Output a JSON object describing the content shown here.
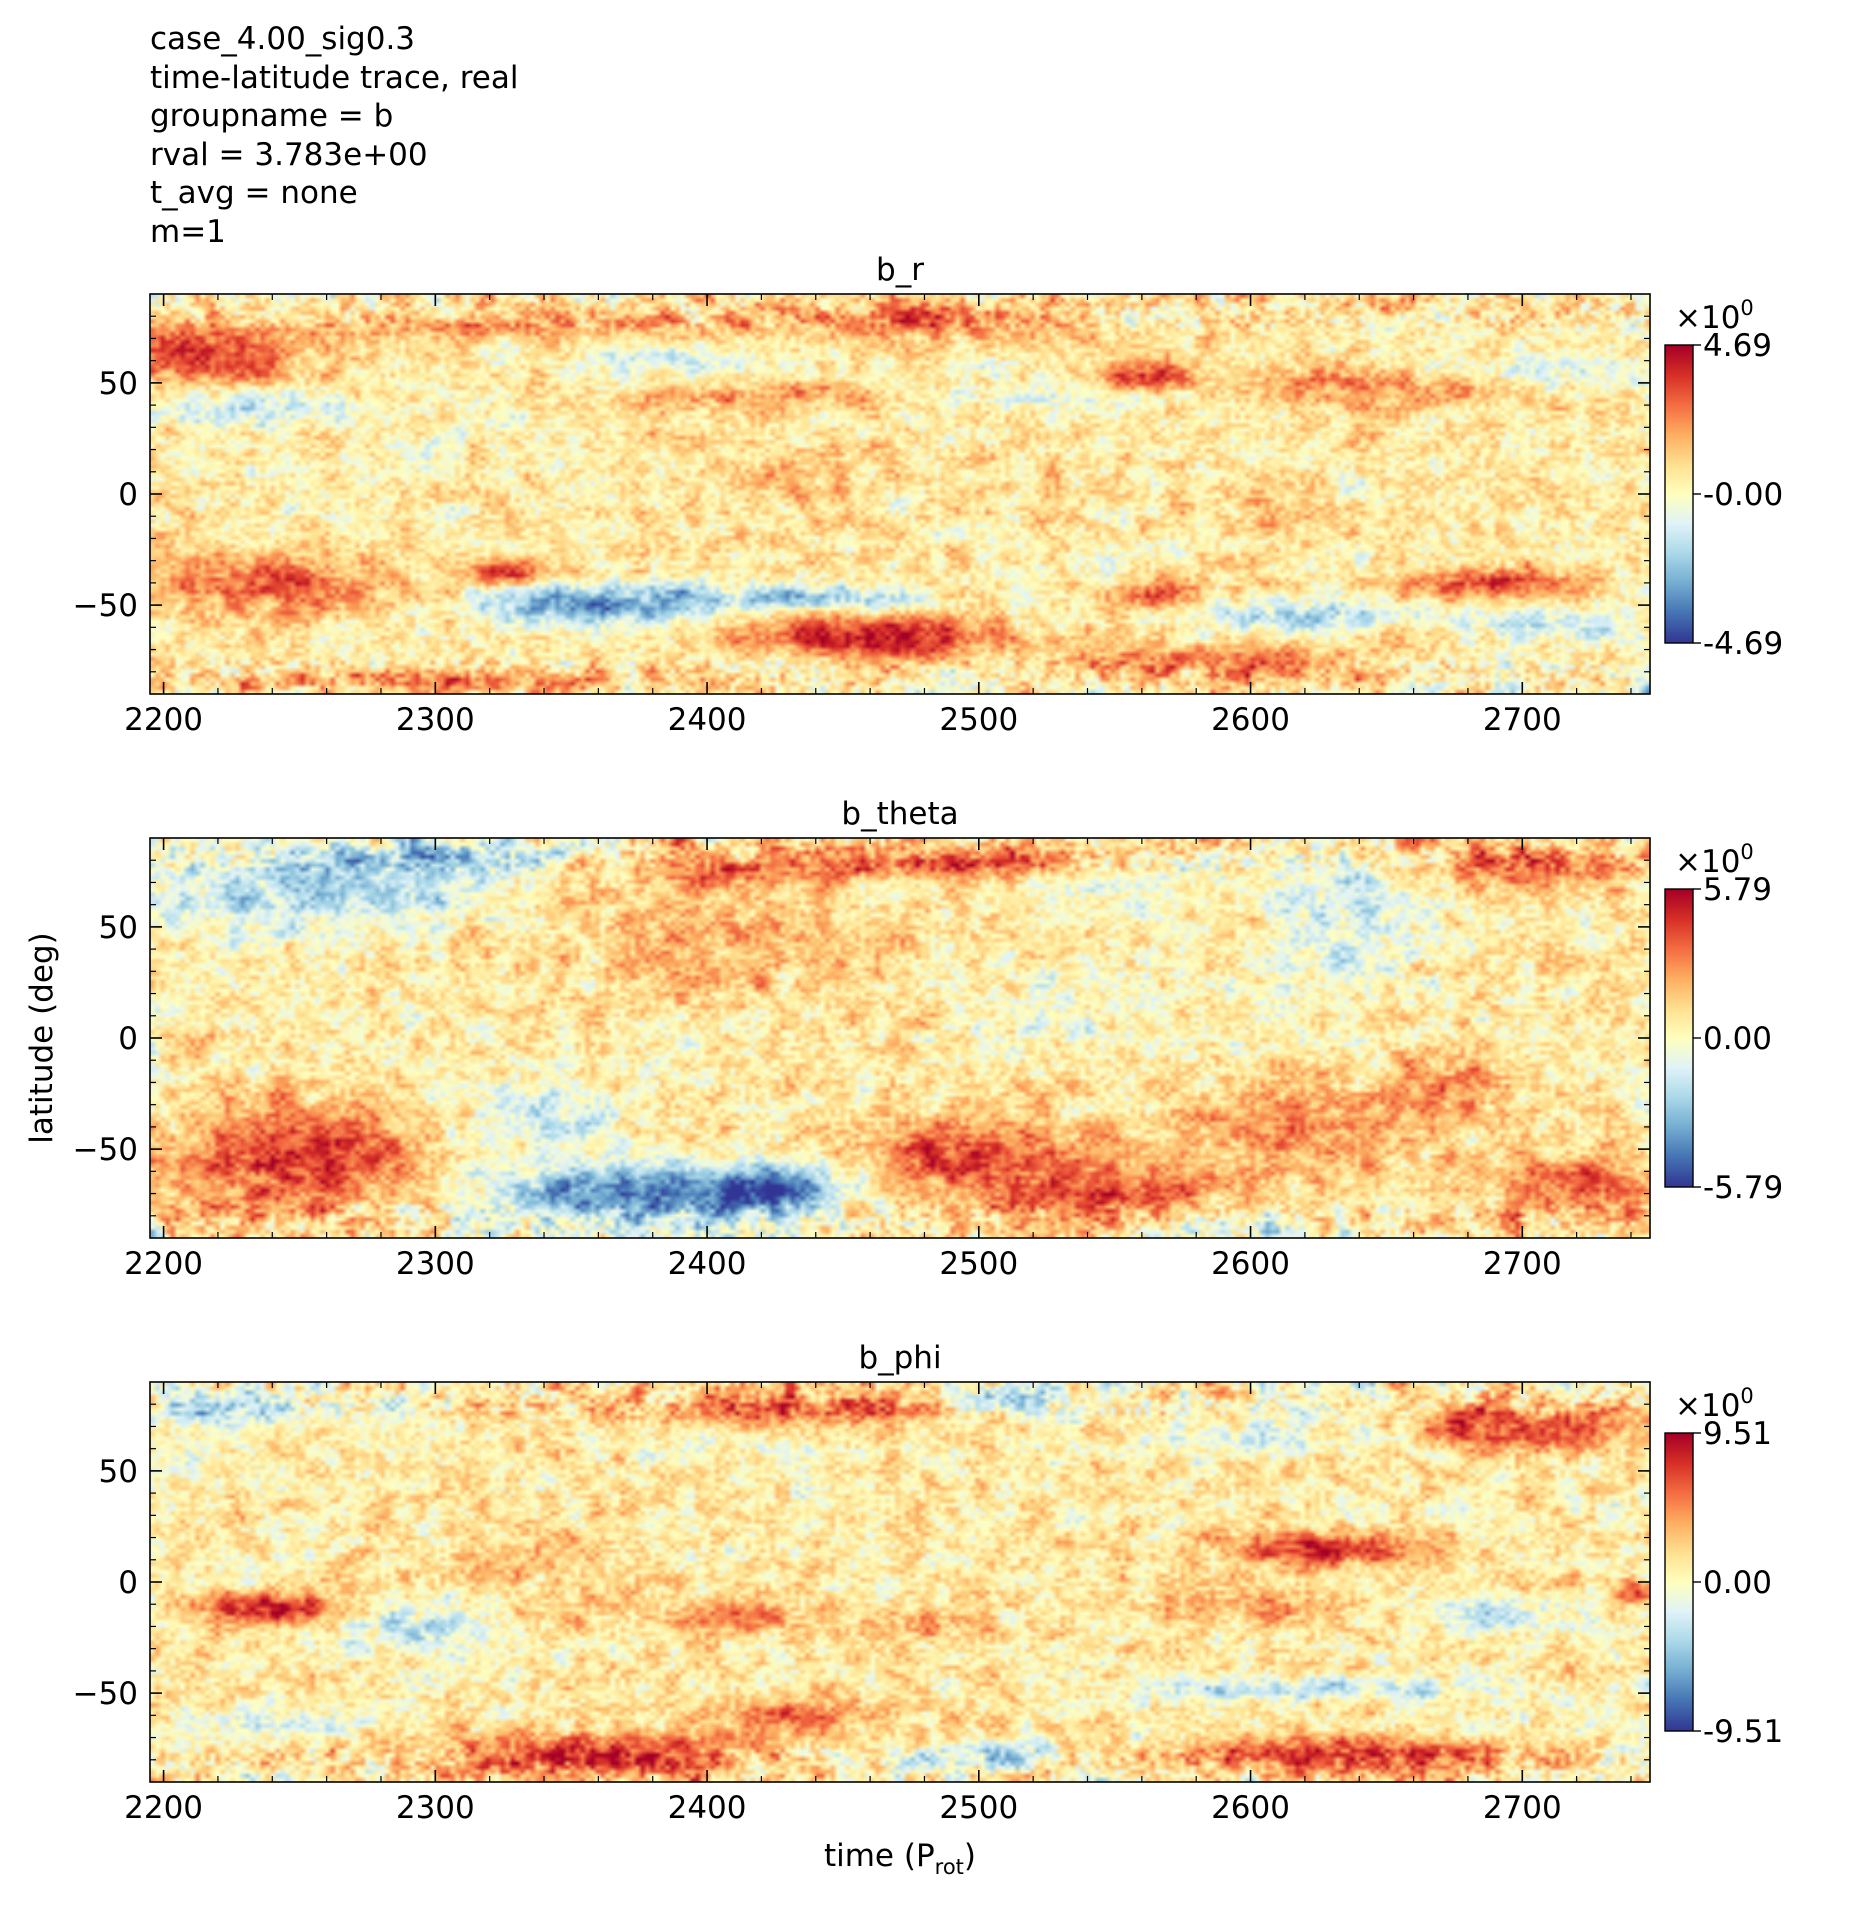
{
  "header_lines": [
    "case_4.00_sig0.3",
    "time-latitude trace, real",
    "groupname = b",
    "rval = 3.783e+00",
    "t_avg = none",
    "m=1"
  ],
  "colorbar_multiplier": {
    "base": "×10",
    "exponent": "0"
  },
  "chart_data": [
    {
      "type": "heatmap",
      "title": "b_r",
      "xlabel": "",
      "ylabel": "",
      "xlim": [
        2195,
        2747
      ],
      "ylim": [
        -90,
        90
      ],
      "xticks": [
        "2200",
        "2300",
        "2400",
        "2500",
        "2600",
        "2700"
      ],
      "yticks": [
        "50",
        "0",
        "−50"
      ],
      "ytick_values": [
        50,
        0,
        -50
      ],
      "colorbar": {
        "min": -4.69,
        "max": 4.69,
        "ticks": [
          "4.69",
          "-0.00",
          "-4.69"
        ]
      },
      "features": [
        {
          "t": 2215,
          "lat": 62,
          "wt": 35,
          "wl": 14,
          "amp": 0.85
        },
        {
          "t": 2330,
          "lat": 72,
          "wt": 60,
          "wl": 10,
          "amp": 0.55
        },
        {
          "t": 2470,
          "lat": 78,
          "wt": 60,
          "wl": 10,
          "amp": 0.55
        },
        {
          "t": 2560,
          "lat": 52,
          "wt": 20,
          "wl": 8,
          "amp": 0.75
        },
        {
          "t": 2650,
          "lat": 48,
          "wt": 50,
          "wl": 10,
          "amp": 0.5
        },
        {
          "t": 2420,
          "lat": 44,
          "wt": 40,
          "wl": 7,
          "amp": 0.45
        },
        {
          "t": 2230,
          "lat": 40,
          "wt": 35,
          "wl": 8,
          "amp": -0.55
        },
        {
          "t": 2390,
          "lat": 62,
          "wt": 30,
          "wl": 8,
          "amp": -0.45
        },
        {
          "t": 2530,
          "lat": 44,
          "wt": 45,
          "wl": 6,
          "amp": -0.35
        },
        {
          "t": 2700,
          "lat": 55,
          "wt": 40,
          "wl": 8,
          "amp": -0.4
        },
        {
          "t": 2330,
          "lat": 66,
          "wt": 40,
          "wl": 6,
          "amp": -0.4
        },
        {
          "t": 2240,
          "lat": -40,
          "wt": 45,
          "wl": 14,
          "amp": 0.65
        },
        {
          "t": 2325,
          "lat": -35,
          "wt": 15,
          "wl": 6,
          "amp": 0.9
        },
        {
          "t": 2360,
          "lat": -50,
          "wt": 45,
          "wl": 9,
          "amp": -0.95
        },
        {
          "t": 2435,
          "lat": -47,
          "wt": 40,
          "wl": 6,
          "amp": -0.75
        },
        {
          "t": 2460,
          "lat": -64,
          "wt": 45,
          "wl": 10,
          "amp": 1.0
        },
        {
          "t": 2560,
          "lat": -45,
          "wt": 20,
          "wl": 9,
          "amp": 0.55
        },
        {
          "t": 2548,
          "lat": -37,
          "wt": 12,
          "wl": 7,
          "amp": -0.45
        },
        {
          "t": 2620,
          "lat": -55,
          "wt": 45,
          "wl": 6,
          "amp": -0.6
        },
        {
          "t": 2690,
          "lat": -40,
          "wt": 35,
          "wl": 6,
          "amp": 0.75
        },
        {
          "t": 2590,
          "lat": -76,
          "wt": 50,
          "wl": 8,
          "amp": 0.65
        },
        {
          "t": 2720,
          "lat": -60,
          "wt": 30,
          "wl": 8,
          "amp": -0.5
        },
        {
          "t": 2300,
          "lat": -84,
          "wt": 90,
          "wl": 5,
          "amp": 0.55
        },
        {
          "t": 2430,
          "lat": 10,
          "wt": 40,
          "wl": 15,
          "amp": 0.2
        },
        {
          "t": 2600,
          "lat": -10,
          "wt": 40,
          "wl": 15,
          "amp": 0.2
        }
      ]
    },
    {
      "type": "heatmap",
      "title": "b_theta",
      "xlabel": "",
      "ylabel": "latitude (deg)",
      "xlim": [
        2195,
        2747
      ],
      "ylim": [
        -90,
        90
      ],
      "xticks": [
        "2200",
        "2300",
        "2400",
        "2500",
        "2600",
        "2700"
      ],
      "yticks": [
        "50",
        "0",
        "−50"
      ],
      "ytick_values": [
        50,
        0,
        -50
      ],
      "colorbar": {
        "min": -5.79,
        "max": 5.79,
        "ticks": [
          "5.79",
          "0.00",
          "-5.79"
        ]
      },
      "features": [
        {
          "t": 2260,
          "lat": 68,
          "wt": 60,
          "wl": 18,
          "amp": -0.65
        },
        {
          "t": 2300,
          "lat": 82,
          "wt": 50,
          "wl": 8,
          "amp": -0.5
        },
        {
          "t": 2420,
          "lat": 78,
          "wt": 50,
          "wl": 10,
          "amp": 0.6
        },
        {
          "t": 2510,
          "lat": 80,
          "wt": 50,
          "wl": 8,
          "amp": 0.6
        },
        {
          "t": 2700,
          "lat": 78,
          "wt": 40,
          "wl": 10,
          "amp": 0.7
        },
        {
          "t": 2635,
          "lat": 65,
          "wt": 30,
          "wl": 18,
          "amp": -0.45
        },
        {
          "t": 2545,
          "lat": 72,
          "wt": 25,
          "wl": 10,
          "amp": -0.35
        },
        {
          "t": 2400,
          "lat": 40,
          "wt": 60,
          "wl": 25,
          "amp": 0.3
        },
        {
          "t": 2250,
          "lat": -55,
          "wt": 45,
          "wl": 25,
          "amp": 0.85
        },
        {
          "t": 2340,
          "lat": -35,
          "wt": 30,
          "wl": 15,
          "amp": -0.45
        },
        {
          "t": 2375,
          "lat": -70,
          "wt": 60,
          "wl": 14,
          "amp": -1.0
        },
        {
          "t": 2425,
          "lat": -68,
          "wt": 25,
          "wl": 12,
          "amp": -0.8
        },
        {
          "t": 2500,
          "lat": -55,
          "wt": 50,
          "wl": 20,
          "amp": 0.7
        },
        {
          "t": 2560,
          "lat": -70,
          "wt": 40,
          "wl": 12,
          "amp": 0.6
        },
        {
          "t": 2620,
          "lat": -40,
          "wt": 45,
          "wl": 20,
          "amp": 0.5
        },
        {
          "t": 2675,
          "lat": -20,
          "wt": 25,
          "wl": 15,
          "amp": 0.45
        },
        {
          "t": 2720,
          "lat": -65,
          "wt": 30,
          "wl": 15,
          "amp": 0.65
        },
        {
          "t": 2600,
          "lat": -85,
          "wt": 20,
          "wl": 6,
          "amp": -0.4
        },
        {
          "t": 2530,
          "lat": 10,
          "wt": 40,
          "wl": 20,
          "amp": -0.2
        },
        {
          "t": 2640,
          "lat": 35,
          "wt": 30,
          "wl": 20,
          "amp": -0.3
        }
      ]
    },
    {
      "type": "heatmap",
      "title": "b_phi",
      "xlabel": "time (P",
      "xlabel_sub": "rot",
      "xlabel_end": ")",
      "ylabel": "",
      "xlim": [
        2195,
        2747
      ],
      "ylim": [
        -90,
        90
      ],
      "xticks": [
        "2200",
        "2300",
        "2400",
        "2500",
        "2600",
        "2700"
      ],
      "yticks": [
        "50",
        "0",
        "−50"
      ],
      "ytick_values": [
        50,
        0,
        -50
      ],
      "colorbar": {
        "min": -9.51,
        "max": 9.51,
        "ticks": [
          "9.51",
          "0.00",
          "-9.51"
        ]
      },
      "features": [
        {
          "t": 2225,
          "lat": 78,
          "wt": 35,
          "wl": 8,
          "amp": -0.7
        },
        {
          "t": 2430,
          "lat": 78,
          "wt": 60,
          "wl": 8,
          "amp": 0.6
        },
        {
          "t": 2510,
          "lat": 82,
          "wt": 25,
          "wl": 6,
          "amp": -0.75
        },
        {
          "t": 2700,
          "lat": 70,
          "wt": 40,
          "wl": 12,
          "amp": 0.75
        },
        {
          "t": 2600,
          "lat": 65,
          "wt": 40,
          "wl": 8,
          "amp": -0.35
        },
        {
          "t": 2240,
          "lat": -12,
          "wt": 28,
          "wl": 7,
          "amp": 1.0
        },
        {
          "t": 2290,
          "lat": -20,
          "wt": 30,
          "wl": 12,
          "amp": -0.5
        },
        {
          "t": 2410,
          "lat": -15,
          "wt": 40,
          "wl": 8,
          "amp": 0.45
        },
        {
          "t": 2630,
          "lat": 15,
          "wt": 40,
          "wl": 8,
          "amp": 0.85
        },
        {
          "t": 2600,
          "lat": -12,
          "wt": 30,
          "wl": 8,
          "amp": 0.4
        },
        {
          "t": 2690,
          "lat": -15,
          "wt": 20,
          "wl": 8,
          "amp": -0.55
        },
        {
          "t": 2740,
          "lat": -5,
          "wt": 8,
          "wl": 6,
          "amp": 0.8
        },
        {
          "t": 2620,
          "lat": -48,
          "wt": 50,
          "wl": 5,
          "amp": -0.55
        },
        {
          "t": 2360,
          "lat": -78,
          "wt": 60,
          "wl": 10,
          "amp": 0.9
        },
        {
          "t": 2430,
          "lat": -60,
          "wt": 30,
          "wl": 8,
          "amp": 0.55
        },
        {
          "t": 2500,
          "lat": -78,
          "wt": 35,
          "wl": 6,
          "amp": -0.6
        },
        {
          "t": 2640,
          "lat": -78,
          "wt": 60,
          "wl": 8,
          "amp": 0.9
        },
        {
          "t": 2240,
          "lat": -65,
          "wt": 35,
          "wl": 8,
          "amp": -0.35
        },
        {
          "t": 2480,
          "lat": -20,
          "wt": 25,
          "wl": 8,
          "amp": 0.35
        },
        {
          "t": 2350,
          "lat": 10,
          "wt": 40,
          "wl": 20,
          "amp": 0.2
        }
      ]
    }
  ]
}
